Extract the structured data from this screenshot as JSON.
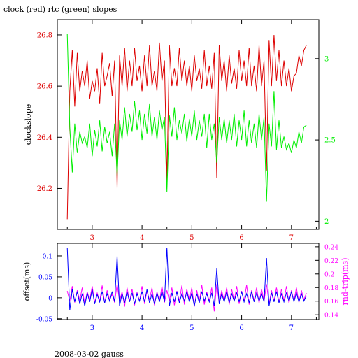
{
  "figure": {
    "title": "clock (red) rtc (green) slopes",
    "footer": "2008-03-02 gauss"
  },
  "colors": {
    "clock": "#dd0000",
    "rtc": "#00ee00",
    "offset": "#0000ff",
    "rndtrip": "#ff00ff",
    "axis": "#000000"
  },
  "chart_data": [
    {
      "type": "line",
      "title": "clock (red) rtc (green) slopes",
      "xlabel": "",
      "ylabel": "clockslope",
      "xlim": [
        2.3,
        7.55
      ],
      "ylim": [
        26.04,
        26.86
      ],
      "y2lim": [
        1.95,
        3.24
      ],
      "xticks": [
        3,
        4,
        5,
        6,
        7
      ],
      "yticks": [
        26.2,
        26.4,
        26.6,
        26.8
      ],
      "ytick_labels": [
        "26.2",
        "26.4",
        "26.6",
        "26.8"
      ],
      "y2ticks": [
        2,
        2.5,
        3
      ],
      "y2tick_labels": [
        "2",
        "2.5",
        "3"
      ],
      "grid": false,
      "series": [
        {
          "axis": "left",
          "color": "#dd0000",
          "x": [
            2.5,
            2.55,
            2.6,
            2.65,
            2.7,
            2.75,
            2.8,
            2.85,
            2.9,
            2.95,
            3.0,
            3.05,
            3.1,
            3.15,
            3.2,
            3.25,
            3.3,
            3.35,
            3.4,
            3.45,
            3.5,
            3.55,
            3.6,
            3.65,
            3.7,
            3.75,
            3.8,
            3.85,
            3.9,
            3.95,
            4.0,
            4.05,
            4.1,
            4.15,
            4.2,
            4.25,
            4.3,
            4.35,
            4.4,
            4.45,
            4.5,
            4.55,
            4.6,
            4.65,
            4.7,
            4.75,
            4.8,
            4.85,
            4.9,
            4.95,
            5.0,
            5.05,
            5.1,
            5.15,
            5.2,
            5.25,
            5.3,
            5.35,
            5.4,
            5.45,
            5.5,
            5.55,
            5.6,
            5.65,
            5.7,
            5.75,
            5.8,
            5.85,
            5.9,
            5.95,
            6.0,
            6.05,
            6.1,
            6.15,
            6.2,
            6.25,
            6.3,
            6.35,
            6.4,
            6.45,
            6.5,
            6.55,
            6.6,
            6.65,
            6.7,
            6.75,
            6.8,
            6.85,
            6.9,
            6.95,
            7.0,
            7.05,
            7.1,
            7.15,
            7.2,
            7.25,
            7.3
          ],
          "y": [
            26.08,
            26.58,
            26.74,
            26.52,
            26.73,
            26.58,
            26.66,
            26.6,
            26.7,
            26.55,
            26.62,
            26.58,
            26.67,
            26.53,
            26.73,
            26.6,
            26.64,
            26.69,
            26.56,
            26.7,
            26.2,
            26.72,
            26.6,
            26.75,
            26.58,
            26.7,
            26.6,
            26.75,
            26.62,
            26.68,
            26.58,
            26.72,
            26.6,
            26.76,
            26.6,
            26.66,
            26.58,
            26.77,
            26.62,
            26.7,
            26.23,
            26.76,
            26.6,
            26.67,
            26.6,
            26.75,
            26.62,
            26.7,
            26.6,
            26.68,
            26.58,
            26.72,
            26.62,
            26.67,
            26.59,
            26.74,
            26.6,
            26.68,
            26.59,
            26.73,
            26.24,
            26.76,
            26.62,
            26.7,
            26.58,
            26.72,
            26.61,
            26.67,
            26.59,
            26.74,
            26.62,
            26.7,
            26.6,
            26.75,
            26.6,
            26.68,
            26.58,
            26.76,
            26.6,
            26.7,
            26.27,
            26.78,
            26.6,
            26.8,
            26.62,
            26.74,
            26.6,
            26.7,
            26.6,
            26.67,
            26.58,
            26.64,
            26.65,
            26.72,
            26.68,
            26.74,
            26.76
          ]
        },
        {
          "axis": "right",
          "color": "#00ee00",
          "x": [
            2.5,
            2.55,
            2.6,
            2.65,
            2.7,
            2.75,
            2.8,
            2.85,
            2.9,
            2.95,
            3.0,
            3.05,
            3.1,
            3.15,
            3.2,
            3.25,
            3.3,
            3.35,
            3.4,
            3.45,
            3.5,
            3.55,
            3.6,
            3.65,
            3.7,
            3.75,
            3.8,
            3.85,
            3.9,
            3.95,
            4.0,
            4.05,
            4.1,
            4.15,
            4.2,
            4.25,
            4.3,
            4.35,
            4.4,
            4.45,
            4.5,
            4.55,
            4.6,
            4.65,
            4.7,
            4.75,
            4.8,
            4.85,
            4.9,
            4.95,
            5.0,
            5.05,
            5.1,
            5.15,
            5.2,
            5.25,
            5.3,
            5.35,
            5.4,
            5.45,
            5.5,
            5.55,
            5.6,
            5.65,
            5.7,
            5.75,
            5.8,
            5.85,
            5.9,
            5.95,
            6.0,
            6.05,
            6.1,
            6.15,
            6.2,
            6.25,
            6.3,
            6.35,
            6.4,
            6.45,
            6.5,
            6.55,
            6.6,
            6.65,
            6.7,
            6.75,
            6.8,
            6.85,
            6.9,
            6.95,
            7.0,
            7.05,
            7.1,
            7.15,
            7.2,
            7.25,
            7.3
          ],
          "y": [
            3.15,
            2.58,
            2.3,
            2.6,
            2.42,
            2.55,
            2.48,
            2.52,
            2.45,
            2.6,
            2.4,
            2.56,
            2.46,
            2.62,
            2.43,
            2.58,
            2.48,
            2.55,
            2.4,
            2.6,
            2.28,
            2.62,
            2.5,
            2.7,
            2.52,
            2.66,
            2.55,
            2.74,
            2.56,
            2.68,
            2.5,
            2.66,
            2.54,
            2.72,
            2.52,
            2.64,
            2.5,
            2.68,
            2.56,
            2.64,
            2.18,
            2.65,
            2.52,
            2.7,
            2.5,
            2.62,
            2.54,
            2.66,
            2.49,
            2.63,
            2.52,
            2.68,
            2.5,
            2.62,
            2.52,
            2.66,
            2.45,
            2.66,
            2.5,
            2.6,
            2.36,
            2.64,
            2.5,
            2.63,
            2.48,
            2.62,
            2.5,
            2.66,
            2.46,
            2.62,
            2.5,
            2.68,
            2.46,
            2.62,
            2.48,
            2.6,
            2.45,
            2.66,
            2.5,
            2.64,
            2.12,
            2.6,
            2.46,
            2.8,
            2.44,
            2.62,
            2.45,
            2.52,
            2.44,
            2.48,
            2.42,
            2.5,
            2.45,
            2.55,
            2.48,
            2.58,
            2.59
          ]
        }
      ]
    },
    {
      "type": "line",
      "title": "",
      "xlabel": "",
      "ylabel": "offset(ms)",
      "y2label": "rnd-trip(ms)",
      "xlim": [
        2.3,
        7.55
      ],
      "ylim": [
        -0.052,
        0.13
      ],
      "y2lim": [
        0.133,
        0.245
      ],
      "xticks": [
        3,
        4,
        5,
        6,
        7
      ],
      "yticks": [
        -0.05,
        0,
        0.05,
        0.1
      ],
      "ytick_labels": [
        "-0.05",
        "0",
        "0.05",
        "0.1"
      ],
      "y2ticks": [
        0.14,
        0.16,
        0.18,
        0.2,
        0.22,
        0.24
      ],
      "y2tick_labels": [
        "0.14",
        "0.16",
        "0.18",
        "0.2",
        "0.22",
        "0.24"
      ],
      "grid": false,
      "series": [
        {
          "axis": "right",
          "color": "#ff00ff",
          "x": [
            2.5,
            2.55,
            2.6,
            2.65,
            2.7,
            2.75,
            2.8,
            2.85,
            2.9,
            2.95,
            3.0,
            3.05,
            3.1,
            3.15,
            3.2,
            3.25,
            3.3,
            3.35,
            3.4,
            3.45,
            3.5,
            3.55,
            3.6,
            3.65,
            3.7,
            3.75,
            3.8,
            3.85,
            3.9,
            3.95,
            4.0,
            4.05,
            4.1,
            4.15,
            4.2,
            4.25,
            4.3,
            4.35,
            4.4,
            4.45,
            4.5,
            4.55,
            4.6,
            4.65,
            4.7,
            4.75,
            4.8,
            4.85,
            4.9,
            4.95,
            5.0,
            5.05,
            5.1,
            5.15,
            5.2,
            5.25,
            5.3,
            5.35,
            5.4,
            5.45,
            5.5,
            5.55,
            5.6,
            5.65,
            5.7,
            5.75,
            5.8,
            5.85,
            5.9,
            5.95,
            6.0,
            6.05,
            6.1,
            6.15,
            6.2,
            6.25,
            6.3,
            6.35,
            6.4,
            6.45,
            6.5,
            6.55,
            6.6,
            6.65,
            6.7,
            6.75,
            6.8,
            6.85,
            6.9,
            6.95,
            7.0,
            7.05,
            7.1,
            7.15,
            7.2,
            7.25,
            7.3
          ],
          "y": [
            0.175,
            0.16,
            0.182,
            0.158,
            0.176,
            0.161,
            0.18,
            0.155,
            0.174,
            0.162,
            0.182,
            0.158,
            0.172,
            0.16,
            0.183,
            0.157,
            0.176,
            0.162,
            0.17,
            0.158,
            0.185,
            0.16,
            0.174,
            0.152,
            0.18,
            0.16,
            0.178,
            0.154,
            0.173,
            0.16,
            0.182,
            0.156,
            0.175,
            0.162,
            0.18,
            0.154,
            0.174,
            0.16,
            0.182,
            0.158,
            0.176,
            0.16,
            0.18,
            0.154,
            0.175,
            0.16,
            0.183,
            0.155,
            0.178,
            0.161,
            0.18,
            0.152,
            0.176,
            0.158,
            0.184,
            0.155,
            0.174,
            0.16,
            0.18,
            0.145,
            0.185,
            0.158,
            0.176,
            0.16,
            0.18,
            0.155,
            0.178,
            0.16,
            0.182,
            0.156,
            0.175,
            0.16,
            0.184,
            0.155,
            0.176,
            0.161,
            0.18,
            0.157,
            0.178,
            0.16,
            0.185,
            0.156,
            0.176,
            0.16,
            0.18,
            0.158,
            0.178,
            0.16,
            0.182,
            0.157,
            0.176,
            0.16,
            0.18,
            0.158,
            0.176,
            0.162,
            0.172
          ]
        },
        {
          "axis": "left",
          "color": "#0000ff",
          "x": [
            2.5,
            2.55,
            2.6,
            2.65,
            2.7,
            2.75,
            2.8,
            2.85,
            2.9,
            2.95,
            3.0,
            3.05,
            3.1,
            3.15,
            3.2,
            3.25,
            3.3,
            3.35,
            3.4,
            3.45,
            3.5,
            3.55,
            3.6,
            3.65,
            3.7,
            3.75,
            3.8,
            3.85,
            3.9,
            3.95,
            4.0,
            4.05,
            4.1,
            4.15,
            4.2,
            4.25,
            4.3,
            4.35,
            4.4,
            4.45,
            4.5,
            4.55,
            4.6,
            4.65,
            4.7,
            4.75,
            4.8,
            4.85,
            4.9,
            4.95,
            5.0,
            5.05,
            5.1,
            5.15,
            5.2,
            5.25,
            5.3,
            5.35,
            5.4,
            5.45,
            5.5,
            5.55,
            5.6,
            5.65,
            5.7,
            5.75,
            5.8,
            5.85,
            5.9,
            5.95,
            6.0,
            6.05,
            6.1,
            6.15,
            6.2,
            6.25,
            6.3,
            6.35,
            6.4,
            6.45,
            6.5,
            6.55,
            6.6,
            6.65,
            6.7,
            6.75,
            6.8,
            6.85,
            6.9,
            6.95,
            7.0,
            7.05,
            7.1,
            7.15,
            7.2,
            7.25,
            7.3
          ],
          "y": [
            0.12,
            -0.03,
            0.02,
            -0.01,
            0.015,
            -0.015,
            0.01,
            -0.02,
            0.012,
            -0.01,
            0.02,
            -0.015,
            0.008,
            -0.01,
            0.015,
            -0.012,
            0.01,
            -0.008,
            0.015,
            -0.01,
            0.1,
            -0.02,
            0.01,
            -0.012,
            0.015,
            -0.01,
            0.012,
            -0.015,
            0.01,
            -0.008,
            0.015,
            -0.01,
            0.02,
            -0.012,
            0.01,
            -0.015,
            0.012,
            -0.01,
            0.015,
            -0.01,
            0.12,
            -0.02,
            0.012,
            -0.01,
            0.015,
            -0.012,
            0.01,
            -0.008,
            0.015,
            -0.01,
            0.012,
            -0.02,
            0.01,
            -0.012,
            0.015,
            -0.008,
            0.01,
            -0.01,
            0.012,
            -0.02,
            0.07,
            -0.015,
            0.01,
            -0.01,
            0.015,
            -0.012,
            0.01,
            -0.008,
            0.012,
            -0.01,
            0.015,
            -0.01,
            0.01,
            -0.012,
            0.015,
            -0.01,
            0.012,
            -0.008,
            0.01,
            -0.01,
            0.095,
            -0.02,
            0.012,
            -0.01,
            0.015,
            -0.012,
            0.01,
            -0.01,
            0.012,
            -0.008,
            0.015,
            -0.01,
            0.012,
            -0.01,
            0.01,
            -0.008,
            0.005
          ]
        }
      ]
    }
  ]
}
